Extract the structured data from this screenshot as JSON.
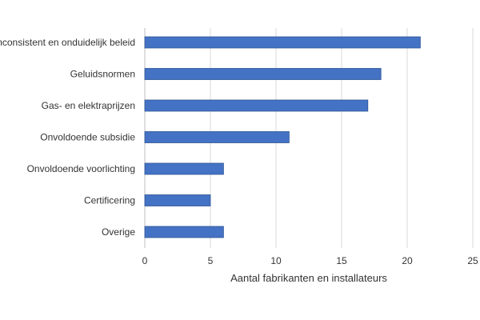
{
  "chart_data": {
    "type": "bar",
    "orientation": "horizontal",
    "categories": [
      "Inconsistent en onduidelijk beleid",
      "Geluidsnormen",
      "Gas- en elektraprijzen",
      "Onvoldoende subsidie",
      "Onvoldoende voorlichting",
      "Certificering",
      "Overige"
    ],
    "values": [
      21,
      18,
      17,
      11,
      6,
      5,
      6
    ],
    "xlabel": "Aantal fabrikanten en installateurs",
    "ylabel": "",
    "title": "",
    "xlim": [
      0,
      25
    ],
    "xticks": [
      0,
      5,
      10,
      15,
      20,
      25
    ],
    "grid": "vertical",
    "legend": "none",
    "bar_color": "#4472c4"
  }
}
